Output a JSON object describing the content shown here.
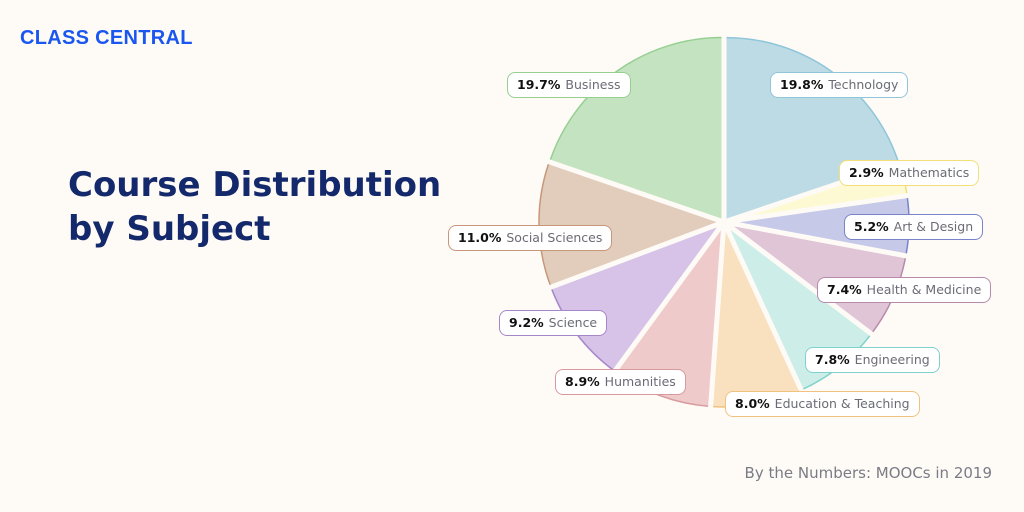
{
  "logo": "CLASS CENTRAL",
  "title_line1": "Course Distribution",
  "title_line2": "by Subject",
  "footer": "By the Numbers: MOOCs in 2019",
  "chart_data": {
    "type": "pie",
    "title": "Course Distribution by Subject",
    "start": "top",
    "direction": "clockwise",
    "slices": [
      {
        "label": "Technology",
        "value": 19.8,
        "pct": "19.8%",
        "fill": "#bddbe5",
        "stroke": "#8fc6da"
      },
      {
        "label": "Mathematics",
        "value": 2.9,
        "pct": "2.9%",
        "fill": "#fdf9d2",
        "stroke": "#f2df78"
      },
      {
        "label": "Art & Design",
        "value": 5.2,
        "pct": "5.2%",
        "fill": "#c6c9e8",
        "stroke": "#7883c9"
      },
      {
        "label": "Health & Medicine",
        "value": 7.4,
        "pct": "7.4%",
        "fill": "#e0c5d6",
        "stroke": "#b78aab"
      },
      {
        "label": "Engineering",
        "value": 7.8,
        "pct": "7.8%",
        "fill": "#cdede9",
        "stroke": "#7fd1cc"
      },
      {
        "label": "Education & Teaching",
        "value": 8.0,
        "pct": "8.0%",
        "fill": "#f9e1c0",
        "stroke": "#f0c27f"
      },
      {
        "label": "Humanities",
        "value": 8.9,
        "pct": "8.9%",
        "fill": "#efcacb",
        "stroke": "#d7999d"
      },
      {
        "label": "Science",
        "value": 9.2,
        "pct": "9.2%",
        "fill": "#d6c3e7",
        "stroke": "#a886ca"
      },
      {
        "label": "Social Sciences",
        "value": 11.0,
        "pct": "11.0%",
        "fill": "#e2cdbc",
        "stroke": "#c8977a"
      },
      {
        "label": "Business",
        "value": 19.7,
        "pct": "19.7%",
        "fill": "#c4e3c0",
        "stroke": "#97cf93"
      }
    ]
  }
}
